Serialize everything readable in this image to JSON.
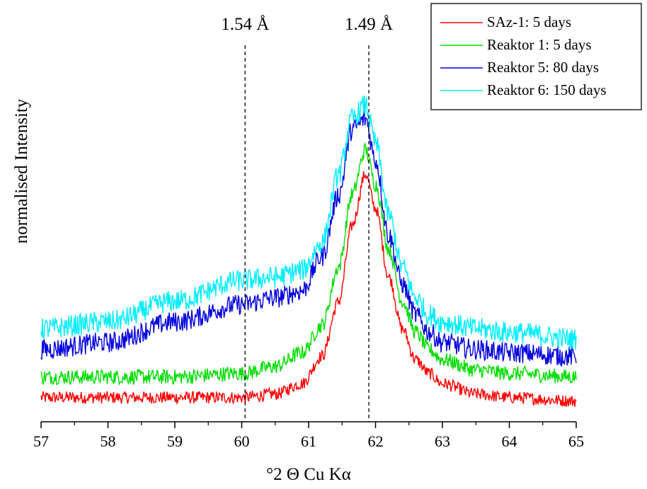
{
  "chart_data": {
    "type": "line",
    "title": "",
    "xlabel": "°2 Θ Cu Kα",
    "ylabel": "normalised Intensity",
    "xlim": [
      57,
      65
    ],
    "ylim": [
      0,
      1
    ],
    "x_ticks": [
      "57",
      "58",
      "59",
      "60",
      "61",
      "62",
      "63",
      "64",
      "65"
    ],
    "y_ticks_shown": false,
    "grid": false,
    "legend_position": "top-right",
    "annotations": [
      {
        "label": "1.54 Å",
        "x": 60.05,
        "style": "dashed"
      },
      {
        "label": "1.49 Å",
        "x": 61.9,
        "style": "dashed"
      }
    ],
    "series": [
      {
        "name": "SAz-1: 5 days",
        "color": "#ff0000",
        "x": [
          57,
          58,
          59,
          60,
          60.5,
          60.9,
          61.2,
          61.45,
          61.65,
          61.85,
          62.0,
          62.2,
          62.4,
          62.6,
          62.8,
          63.0,
          63.5,
          64,
          65
        ],
        "y": [
          0.05,
          0.05,
          0.05,
          0.05,
          0.06,
          0.09,
          0.17,
          0.33,
          0.55,
          0.7,
          0.6,
          0.4,
          0.25,
          0.16,
          0.12,
          0.09,
          0.06,
          0.05,
          0.04
        ]
      },
      {
        "name": "Reaktor 1: 5 days",
        "color": "#00dd00",
        "x": [
          57,
          58,
          59,
          60,
          60.5,
          60.9,
          61.2,
          61.45,
          61.65,
          61.85,
          62.0,
          62.2,
          62.4,
          62.6,
          62.8,
          63.0,
          63.5,
          64,
          65
        ],
        "y": [
          0.11,
          0.11,
          0.11,
          0.12,
          0.14,
          0.18,
          0.26,
          0.43,
          0.64,
          0.77,
          0.67,
          0.48,
          0.33,
          0.24,
          0.19,
          0.16,
          0.13,
          0.12,
          0.11
        ]
      },
      {
        "name": "Reaktor 5: 80 days",
        "color": "#0000dd",
        "x": [
          57,
          58,
          59,
          60,
          60.5,
          60.9,
          61.2,
          61.45,
          61.65,
          61.85,
          62.0,
          62.2,
          62.4,
          62.6,
          62.8,
          63.0,
          63.5,
          64,
          65
        ],
        "y": [
          0.19,
          0.21,
          0.27,
          0.32,
          0.34,
          0.36,
          0.46,
          0.64,
          0.83,
          0.86,
          0.74,
          0.52,
          0.38,
          0.29,
          0.24,
          0.21,
          0.19,
          0.18,
          0.17
        ]
      },
      {
        "name": "Reaktor 6: 150 days",
        "color": "#00eeff",
        "x": [
          57,
          58,
          59,
          60,
          60.5,
          60.9,
          61.2,
          61.45,
          61.65,
          61.85,
          62.0,
          62.2,
          62.4,
          62.6,
          62.8,
          63.0,
          63.5,
          64,
          65
        ],
        "y": [
          0.25,
          0.27,
          0.33,
          0.39,
          0.4,
          0.42,
          0.5,
          0.7,
          0.86,
          0.9,
          0.79,
          0.58,
          0.43,
          0.34,
          0.29,
          0.27,
          0.25,
          0.24,
          0.22
        ]
      }
    ]
  }
}
